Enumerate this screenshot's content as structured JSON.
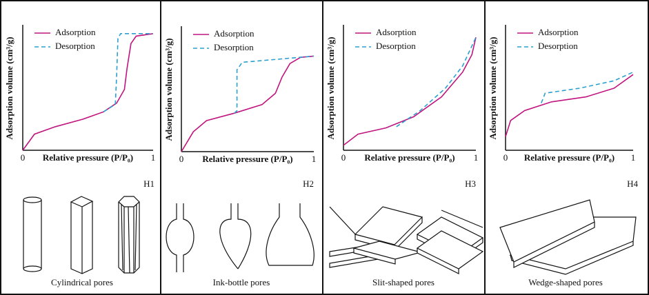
{
  "chart_data": [
    {
      "type": "line",
      "label": "H1",
      "caption": "Cylindrical pores",
      "x_label": "Relative pressure (P/P₀)",
      "y_label": "Adsorption volume (cm³/g)",
      "xlim": [
        0,
        1
      ],
      "ylim": [
        0,
        1
      ],
      "xticks": [
        0,
        1
      ],
      "series": [
        {
          "name": "Adsorption",
          "color": "#c0147e",
          "style": "solid",
          "x": [
            0,
            0.09,
            0.25,
            0.46,
            0.62,
            0.72,
            0.78,
            0.8,
            0.83,
            0.87,
            1
          ],
          "values": [
            0,
            0.13,
            0.19,
            0.25,
            0.31,
            0.38,
            0.49,
            0.66,
            0.86,
            0.92,
            0.94
          ]
        },
        {
          "name": "Desorption",
          "color": "#2a9fd0",
          "style": "dashed",
          "x": [
            0.62,
            0.71,
            0.72,
            0.73,
            0.75,
            1
          ],
          "values": [
            0.31,
            0.37,
            0.6,
            0.9,
            0.94,
            0.94
          ]
        }
      ]
    },
    {
      "type": "line",
      "label": "H2",
      "caption": "Ink-bottle pores",
      "x_label": "Relative pressure (P/P₀)",
      "y_label": "Adsorption volume (cm³/g)",
      "xlim": [
        0,
        1
      ],
      "ylim": [
        0,
        1
      ],
      "xticks": [
        0,
        1
      ],
      "series": [
        {
          "name": "Adsorption",
          "color": "#c0147e",
          "style": "solid",
          "x": [
            0,
            0.09,
            0.19,
            0.4,
            0.61,
            0.71,
            0.76,
            0.82,
            0.9,
            1
          ],
          "values": [
            0,
            0.16,
            0.25,
            0.31,
            0.38,
            0.47,
            0.6,
            0.71,
            0.76,
            0.77
          ]
        },
        {
          "name": "Desorption",
          "color": "#2a9fd0",
          "style": "dashed",
          "x": [
            0.4,
            0.42,
            0.42,
            0.46,
            1
          ],
          "values": [
            0.31,
            0.33,
            0.66,
            0.72,
            0.77
          ]
        }
      ]
    },
    {
      "type": "line",
      "label": "H3",
      "caption": "Slit-shaped pores",
      "x_label": "Relative pressure (P/P₀)",
      "y_label": "Adsorption volume (cm³/g)",
      "xlim": [
        0,
        1
      ],
      "ylim": [
        0,
        1
      ],
      "xticks": [
        0,
        1
      ],
      "series": [
        {
          "name": "Adsorption",
          "color": "#c0147e",
          "style": "solid",
          "x": [
            0,
            0.11,
            0.32,
            0.53,
            0.74,
            0.9,
            0.97,
            1
          ],
          "values": [
            0.04,
            0.13,
            0.18,
            0.27,
            0.43,
            0.63,
            0.77,
            0.91
          ]
        },
        {
          "name": "Desorption",
          "color": "#2a9fd0",
          "style": "dashed",
          "x": [
            0.4,
            0.58,
            0.77,
            0.9,
            1
          ],
          "values": [
            0.19,
            0.32,
            0.5,
            0.68,
            0.91
          ]
        }
      ]
    },
    {
      "type": "line",
      "label": "H4",
      "caption": "Wedge-shaped pores",
      "x_label": "Relative pressure (P/P₀)",
      "y_label": "Adsorption volume (cm³/g)",
      "xlim": [
        0,
        1
      ],
      "ylim": [
        0,
        1
      ],
      "xticks": [
        0,
        1
      ],
      "series": [
        {
          "name": "Adsorption",
          "color": "#c0147e",
          "style": "solid",
          "x": [
            0,
            0.04,
            0.15,
            0.36,
            0.63,
            0.85,
            1
          ],
          "values": [
            0.11,
            0.24,
            0.32,
            0.39,
            0.43,
            0.5,
            0.61
          ]
        },
        {
          "name": "Desorption",
          "color": "#2a9fd0",
          "style": "dashed",
          "x": [
            0.28,
            0.31,
            0.58,
            0.85,
            1
          ],
          "values": [
            0.38,
            0.46,
            0.5,
            0.56,
            0.63
          ]
        }
      ]
    }
  ]
}
